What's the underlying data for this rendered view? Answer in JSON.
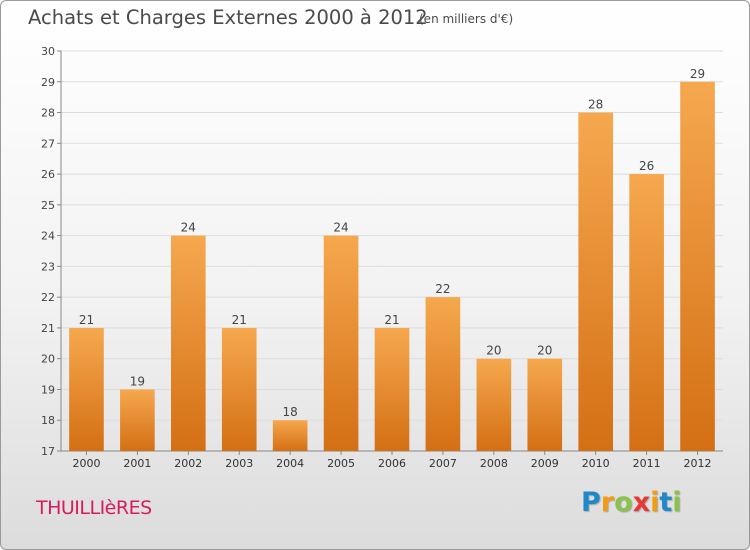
{
  "title": "Achats et Charges Externes 2000 à 2012",
  "unit_note": "(en milliers d'€)",
  "commune": "THUILLIèRES",
  "logo": {
    "letters": [
      "P",
      "r",
      "o",
      "x",
      "i",
      "t",
      "i"
    ],
    "colors": [
      "#1e88c8",
      "#f39c12",
      "#8bc34a",
      "#e53935",
      "#f39c12",
      "#1e88c8",
      "#8bc34a"
    ]
  },
  "colors": {
    "bar_top": "#f6a84e",
    "bar_bottom": "#d46f14",
    "commune": "#d81b60"
  },
  "chart_data": {
    "type": "bar",
    "categories": [
      "2000",
      "2001",
      "2002",
      "2003",
      "2004",
      "2005",
      "2006",
      "2007",
      "2008",
      "2009",
      "2010",
      "2011",
      "2012"
    ],
    "values": [
      21,
      19,
      24,
      21,
      18,
      24,
      21,
      22,
      20,
      20,
      28,
      26,
      29
    ],
    "ylim": [
      17,
      30
    ],
    "yticks": [
      17,
      18,
      19,
      20,
      21,
      22,
      23,
      24,
      25,
      26,
      27,
      28,
      29,
      30
    ],
    "grid": true
  }
}
